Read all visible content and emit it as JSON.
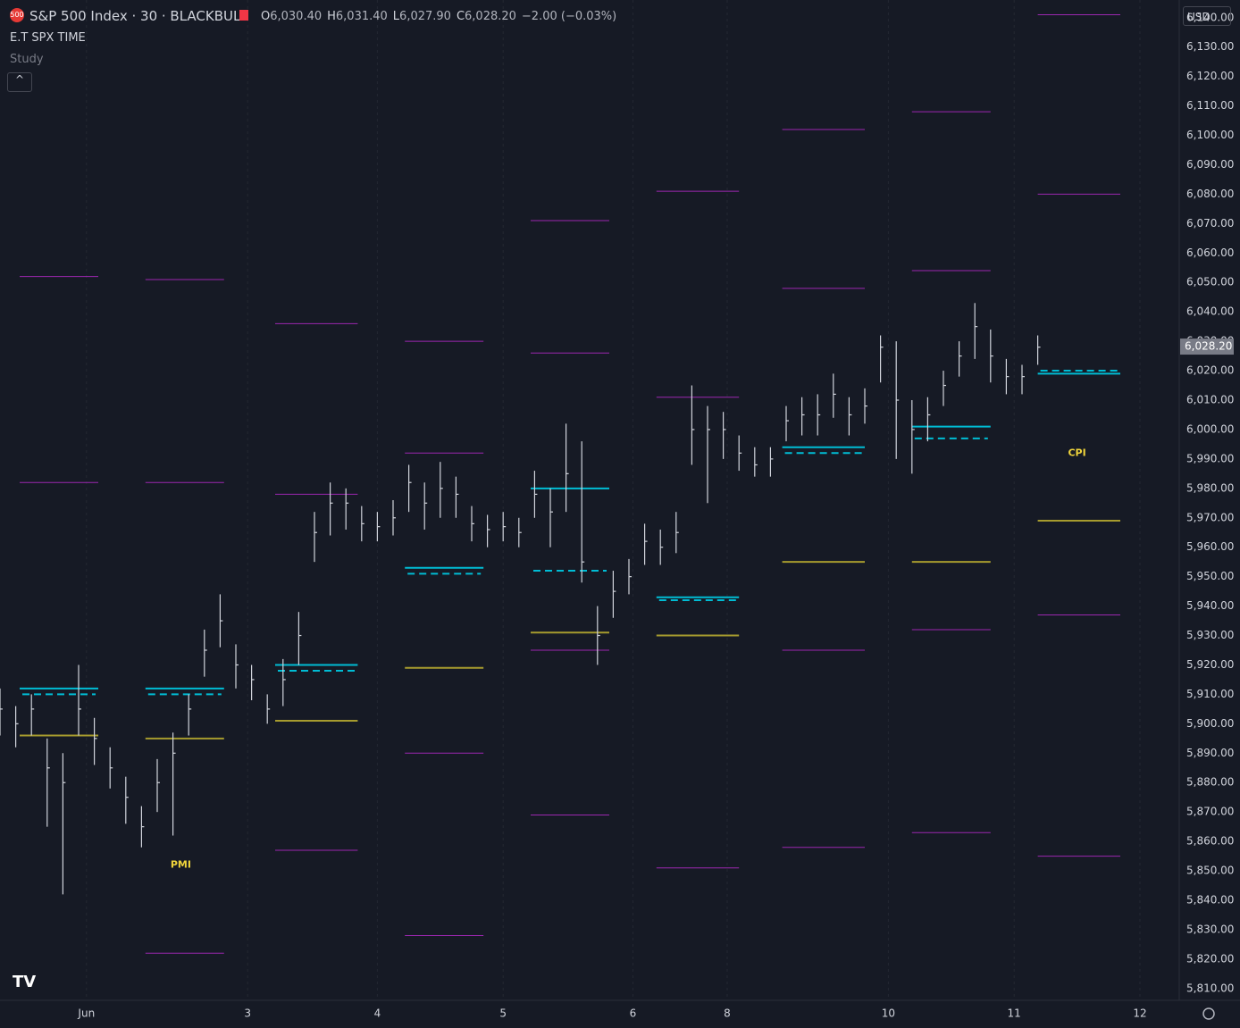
{
  "header": {
    "badge": "500",
    "title": "S&P 500 Index · 30 · BLACKBULL",
    "quote": [
      {
        "k": "O",
        "v": "6,030.40"
      },
      {
        "k": "H",
        "v": "6,031.40"
      },
      {
        "k": "L",
        "v": "6,027.90"
      },
      {
        "k": "C",
        "v": "6,028.20"
      }
    ],
    "change": "−2.00 (−0.03%)",
    "indicator": "E.T SPX TIME",
    "study": "Study",
    "currency": "USD"
  },
  "chart_data": {
    "type": "ohlc",
    "xlim": [
      0,
      300
    ],
    "ylim": [
      5806,
      6146
    ],
    "xticks": [
      {
        "value": 22,
        "label": "Jun"
      },
      {
        "value": 63,
        "label": "3"
      },
      {
        "value": 96,
        "label": "4"
      },
      {
        "value": 128,
        "label": "5"
      },
      {
        "value": 161,
        "label": "6"
      },
      {
        "value": 185,
        "label": "8"
      },
      {
        "value": 226,
        "label": "10"
      },
      {
        "value": 258,
        "label": "11"
      },
      {
        "value": 290,
        "label": "12"
      }
    ],
    "yticks": [
      {
        "value": 5810,
        "label": "5,810.00"
      },
      {
        "value": 5820,
        "label": "5,820.00"
      },
      {
        "value": 5830,
        "label": "5,830.00"
      },
      {
        "value": 5840,
        "label": "5,840.00"
      },
      {
        "value": 5850,
        "label": "5,850.00"
      },
      {
        "value": 5860,
        "label": "5,860.00"
      },
      {
        "value": 5870,
        "label": "5,870.00"
      },
      {
        "value": 5880,
        "label": "5,880.00"
      },
      {
        "value": 5890,
        "label": "5,890.00"
      },
      {
        "value": 5900,
        "label": "5,900.00"
      },
      {
        "value": 5910,
        "label": "5,910.00"
      },
      {
        "value": 5920,
        "label": "5,920.00"
      },
      {
        "value": 5930,
        "label": "5,930.00"
      },
      {
        "value": 5940,
        "label": "5,940.00"
      },
      {
        "value": 5950,
        "label": "5,950.00"
      },
      {
        "value": 5960,
        "label": "5,960.00"
      },
      {
        "value": 5970,
        "label": "5,970.00"
      },
      {
        "value": 5980,
        "label": "5,980.00"
      },
      {
        "value": 5990,
        "label": "5,990.00"
      },
      {
        "value": 6000,
        "label": "6,000.00"
      },
      {
        "value": 6010,
        "label": "6,010.00"
      },
      {
        "value": 6020,
        "label": "6,020.00"
      },
      {
        "value": 6030,
        "label": "6,030.00"
      },
      {
        "value": 6040,
        "label": "6,040.00"
      },
      {
        "value": 6050,
        "label": "6,050.00"
      },
      {
        "value": 6060,
        "label": "6,060.00"
      },
      {
        "value": 6070,
        "label": "6,070.00"
      },
      {
        "value": 6080,
        "label": "6,080.00"
      },
      {
        "value": 6090,
        "label": "6,090.00"
      },
      {
        "value": 6100,
        "label": "6,100.00"
      },
      {
        "value": 6110,
        "label": "6,110.00"
      },
      {
        "value": 6120,
        "label": "6,120.00"
      },
      {
        "value": 6130,
        "label": "6,130.00"
      },
      {
        "value": 6140,
        "label": "6,140.00"
      }
    ],
    "last_price": {
      "value": 6028.2,
      "label": "6,028.20"
    },
    "bar_color": "#d1d4dc",
    "x": [
      0,
      4,
      8,
      12,
      16,
      20,
      24,
      28,
      32,
      36,
      40,
      44,
      48,
      52,
      56,
      60,
      64,
      68,
      72,
      76,
      80,
      84,
      88,
      92,
      96,
      100,
      104,
      108,
      112,
      116,
      120,
      124,
      128,
      132,
      136,
      140,
      144,
      148,
      152,
      156,
      160,
      164,
      168,
      172,
      176,
      180,
      184,
      188,
      192,
      196,
      200,
      204,
      208,
      212,
      216,
      220,
      224,
      228,
      232,
      236,
      240,
      244,
      248,
      252,
      256,
      260,
      264
    ],
    "high": [
      5912,
      5906,
      5910,
      5895,
      5890,
      5920,
      5902,
      5892,
      5882,
      5872,
      5888,
      5897,
      5910,
      5932,
      5944,
      5927,
      5920,
      5910,
      5922,
      5938,
      5972,
      5982,
      5980,
      5974,
      5972,
      5976,
      5988,
      5982,
      5989,
      5984,
      5974,
      5971,
      5972,
      5970,
      5986,
      5980,
      6002,
      5996,
      5940,
      5952,
      5956,
      5968,
      5966,
      5972,
      6015,
      6008,
      6006,
      5998,
      5994,
      5994,
      6008,
      6011,
      6012,
      6019,
      6011,
      6014,
      6032,
      6030,
      6010,
      6011,
      6020,
      6030,
      6043,
      6034,
      6024,
      6022,
      6032
    ],
    "low": [
      5896,
      5892,
      5896,
      5865,
      5842,
      5896,
      5886,
      5878,
      5866,
      5858,
      5870,
      5862,
      5896,
      5916,
      5926,
      5912,
      5908,
      5900,
      5906,
      5920,
      5955,
      5964,
      5966,
      5962,
      5962,
      5964,
      5972,
      5966,
      5970,
      5970,
      5962,
      5960,
      5962,
      5960,
      5970,
      5960,
      5972,
      5948,
      5920,
      5936,
      5944,
      5954,
      5954,
      5958,
      5988,
      5975,
      5990,
      5986,
      5984,
      5984,
      5996,
      5998,
      5998,
      6004,
      5998,
      6002,
      6016,
      5990,
      5985,
      5996,
      6008,
      6018,
      6024,
      6016,
      6012,
      6012,
      6022
    ],
    "close": [
      5905,
      5900,
      5905,
      5885,
      5880,
      5905,
      5895,
      5885,
      5875,
      5865,
      5880,
      5890,
      5905,
      5925,
      5935,
      5920,
      5915,
      5905,
      5915,
      5930,
      5965,
      5975,
      5975,
      5968,
      5967,
      5970,
      5982,
      5975,
      5980,
      5978,
      5968,
      5966,
      5967,
      5965,
      5978,
      5972,
      5985,
      5955,
      5930,
      5945,
      5950,
      5962,
      5960,
      5965,
      6000,
      6000,
      6000,
      5992,
      5988,
      5990,
      6003,
      6005,
      6005,
      6012,
      6005,
      6008,
      6028,
      6010,
      6000,
      6005,
      6015,
      6025,
      6035,
      6025,
      6018,
      6018,
      6028
    ],
    "band_color": "#9c27b0",
    "solid_color": "#00bcd4",
    "dashed_color": "#00bcd4",
    "mid_color": "#a69b2e",
    "note_color": "#f0d53c",
    "sessions": [
      {
        "start": 5,
        "end": 25,
        "bands": [
          6052,
          5982
        ],
        "solid": 5912,
        "dashed": 5910,
        "mid": 5896
      },
      {
        "start": 37,
        "end": 57,
        "bands": [
          6051,
          5982,
          5822
        ],
        "solid": 5912,
        "dashed": 5910,
        "mid": 5895
      },
      {
        "start": 70,
        "end": 91,
        "bands": [
          6036,
          5978,
          5857
        ],
        "solid": 5920,
        "dashed": 5918,
        "mid": 5901
      },
      {
        "start": 103,
        "end": 123,
        "bands": [
          6030,
          5992,
          5890,
          5828
        ],
        "solid": 5953,
        "dashed": 5951,
        "mid": 5919
      },
      {
        "start": 135,
        "end": 155,
        "bands": [
          6071,
          6026,
          5925,
          5869
        ],
        "solid": 5980,
        "dashed": 5952,
        "mid": 5931
      },
      {
        "start": 167,
        "end": 188,
        "bands": [
          6081,
          6011,
          5851
        ],
        "solid": 5943,
        "dashed": 5942,
        "mid": 5930
      },
      {
        "start": 199,
        "end": 220,
        "bands": [
          6102,
          6048,
          5925,
          5858
        ],
        "solid": 5994,
        "dashed": 5992,
        "mid": 5955
      },
      {
        "start": 232,
        "end": 252,
        "bands": [
          6108,
          6054,
          5932,
          5863
        ],
        "solid": 6001,
        "dashed": 5997,
        "mid": 5955
      },
      {
        "start": 264,
        "end": 285,
        "bands": [
          6141,
          6080,
          5937,
          5855
        ],
        "solid": 6019,
        "dashed": 6020,
        "mid": 5969
      }
    ],
    "annotations": [
      {
        "text": "PMI",
        "x": 46,
        "y": 5852
      },
      {
        "text": "CPI",
        "x": 274,
        "y": 5992
      }
    ]
  }
}
